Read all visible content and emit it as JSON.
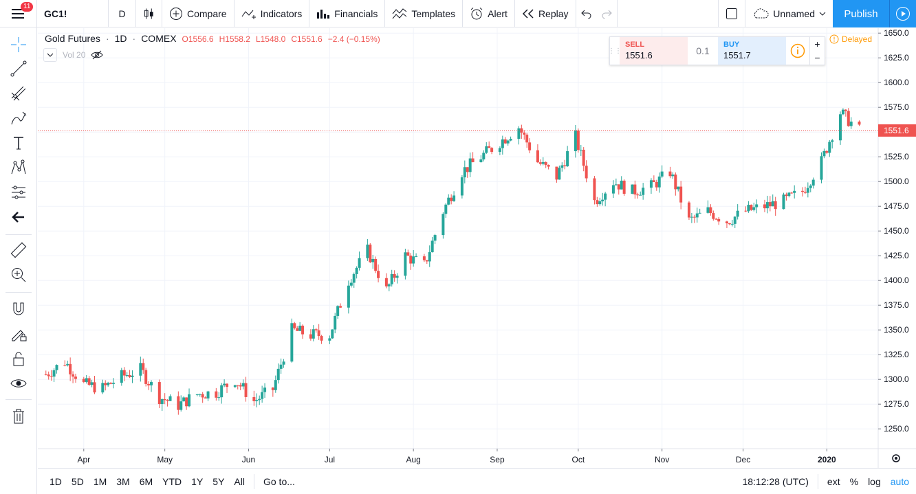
{
  "topbar": {
    "menu_badge": "11",
    "symbol": "GC1!",
    "interval": "D",
    "compare": "Compare",
    "indicators": "Indicators",
    "financials": "Financials",
    "templates": "Templates",
    "alert": "Alert",
    "replay": "Replay",
    "layout_name": "Unnamed",
    "publish": "Publish"
  },
  "legend": {
    "title": "Gold Futures",
    "interval": "1D",
    "exchange": "COMEX",
    "open": "O1556.6",
    "high": "H1558.2",
    "low": "L1548.0",
    "close": "C1551.6",
    "change": "−2.4 (−0.15%)",
    "volume_label": "Vol 20"
  },
  "trade_panel": {
    "sell_label": "SELL",
    "sell_price": "1551.6",
    "spread": "0.1",
    "buy_label": "BUY",
    "buy_price": "1551.7",
    "plus": "+",
    "minus": "−"
  },
  "delayed_label": "Delayed",
  "colors": {
    "up": "#26a69a",
    "down": "#ef5350",
    "accent": "#2196f3",
    "price_line": "#ef5350"
  },
  "chart_data": {
    "type": "candlestick",
    "title": "Gold Futures · 1D · COMEX",
    "ylim": [
      1230,
      1655
    ],
    "y_ticks": [
      1650,
      1625,
      1600,
      1575,
      1550,
      1525,
      1500,
      1475,
      1450,
      1425,
      1400,
      1375,
      1350,
      1325,
      1300,
      1275,
      1250
    ],
    "y_tick_labels": [
      "1650.0",
      "1625.0",
      "1600.0",
      "1575.0",
      "1550.0",
      "1525.0",
      "1500.0",
      "1475.0",
      "1450.0",
      "1425.0",
      "1400.0",
      "1375.0",
      "1350.0",
      "1325.0",
      "1300.0",
      "1275.0",
      "1250.0"
    ],
    "x_labels": [
      "Apr",
      "May",
      "Jun",
      "Jul",
      "Aug",
      "Sep",
      "Oct",
      "Nov",
      "Dec",
      "2020"
    ],
    "x_label_dates": [
      "2019-04-01",
      "2019-05-01",
      "2019-06-01",
      "2019-07-01",
      "2019-08-01",
      "2019-09-01",
      "2019-10-01",
      "2019-11-01",
      "2019-12-01",
      "2020-01-01"
    ],
    "last_price": 1551.6,
    "last_price_label": "1551.6",
    "grid": true,
    "close_series": [
      {
        "date": "2019-03-18",
        "v": 1305
      },
      {
        "date": "2019-03-25",
        "v": 1318
      },
      {
        "date": "2019-04-01",
        "v": 1295
      },
      {
        "date": "2019-04-08",
        "v": 1291
      },
      {
        "date": "2019-04-15",
        "v": 1303
      },
      {
        "date": "2019-04-22",
        "v": 1310
      },
      {
        "date": "2019-04-29",
        "v": 1282
      },
      {
        "date": "2019-05-06",
        "v": 1274
      },
      {
        "date": "2019-05-13",
        "v": 1285
      },
      {
        "date": "2019-05-20",
        "v": 1287
      },
      {
        "date": "2019-05-27",
        "v": 1300
      },
      {
        "date": "2019-06-03",
        "v": 1278
      },
      {
        "date": "2019-06-10",
        "v": 1290
      },
      {
        "date": "2019-06-17",
        "v": 1350
      },
      {
        "date": "2019-06-24",
        "v": 1345
      },
      {
        "date": "2019-07-01",
        "v": 1345
      },
      {
        "date": "2019-07-08",
        "v": 1400
      },
      {
        "date": "2019-07-15",
        "v": 1430
      },
      {
        "date": "2019-07-22",
        "v": 1390
      },
      {
        "date": "2019-07-29",
        "v": 1425
      },
      {
        "date": "2019-08-05",
        "v": 1415
      },
      {
        "date": "2019-08-12",
        "v": 1470
      },
      {
        "date": "2019-08-19",
        "v": 1510
      },
      {
        "date": "2019-08-26",
        "v": 1525
      },
      {
        "date": "2019-09-02",
        "v": 1540
      },
      {
        "date": "2019-09-09",
        "v": 1555
      },
      {
        "date": "2019-09-16",
        "v": 1520
      },
      {
        "date": "2019-09-23",
        "v": 1505
      },
      {
        "date": "2019-09-30",
        "v": 1545
      },
      {
        "date": "2019-10-07",
        "v": 1480
      },
      {
        "date": "2019-10-14",
        "v": 1500
      },
      {
        "date": "2019-10-21",
        "v": 1490
      },
      {
        "date": "2019-10-28",
        "v": 1495
      },
      {
        "date": "2019-11-04",
        "v": 1510
      },
      {
        "date": "2019-11-11",
        "v": 1460
      },
      {
        "date": "2019-11-18",
        "v": 1470
      },
      {
        "date": "2019-11-25",
        "v": 1460
      },
      {
        "date": "2019-12-02",
        "v": 1470
      },
      {
        "date": "2019-12-09",
        "v": 1475
      },
      {
        "date": "2019-12-16",
        "v": 1480
      },
      {
        "date": "2019-12-23",
        "v": 1490
      },
      {
        "date": "2019-12-30",
        "v": 1520
      },
      {
        "date": "2020-01-06",
        "v": 1570
      },
      {
        "date": "2020-01-13",
        "v": 1551.6
      }
    ]
  },
  "bottombar": {
    "ranges": [
      "1D",
      "5D",
      "1M",
      "3M",
      "6M",
      "YTD",
      "1Y",
      "5Y",
      "All"
    ],
    "goto": "Go to...",
    "time": "18:12:28 (UTC)",
    "ext": "ext",
    "percent": "%",
    "log": "log",
    "auto": "auto"
  }
}
